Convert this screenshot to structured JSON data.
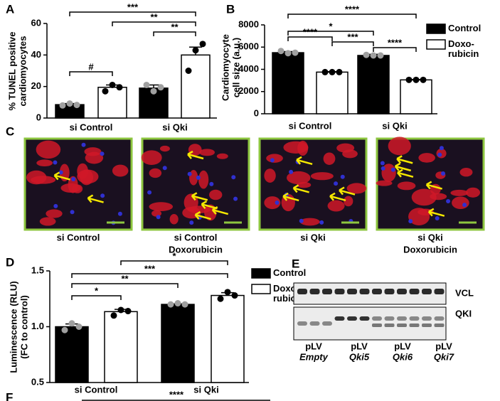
{
  "chart_data": [
    {
      "type": "bar",
      "panel": "A",
      "ylabel": [
        "% TUNEL positive",
        "cardiomyocytes"
      ],
      "categories": [
        "si Control",
        "si Qki"
      ],
      "ylim": [
        0,
        60
      ],
      "yticks": [
        0,
        20,
        40,
        60
      ],
      "series": [
        {
          "name": "Control",
          "color": "#000000",
          "point_color": "#a0a0a0",
          "values": [
            8.5,
            19
          ],
          "errors": [
            0.7,
            2
          ],
          "points": [
            [
              8,
              9.2,
              8.3
            ],
            [
              21,
              17,
              19.5
            ]
          ]
        },
        {
          "name": "Doxo-\nrubicin",
          "color": "#ffffff",
          "point_color": "#000000",
          "values": [
            19.5,
            40
          ],
          "errors": [
            1.5,
            5
          ],
          "points": [
            [
              17,
              21,
              19.5
            ],
            [
              30,
              43,
              47
            ]
          ]
        }
      ],
      "annotations": [
        "***",
        "**",
        "**",
        "#"
      ]
    },
    {
      "type": "bar",
      "panel": "B",
      "ylabel": [
        "Cardiomyocyte",
        "cell size (a.u.)"
      ],
      "categories": [
        "si Control",
        "si Qki"
      ],
      "ylim": [
        0,
        8000
      ],
      "yticks": [
        0,
        2000,
        4000,
        6000,
        8000
      ],
      "legend": "right",
      "series": [
        {
          "name": "Control",
          "color": "#000000",
          "point_color": "#a0a0a0",
          "values": [
            5500,
            5250
          ],
          "errors": [
            100,
            100
          ],
          "points": [
            [
              5650,
              5450,
              5500
            ],
            [
              5300,
              5250,
              5250
            ]
          ]
        },
        {
          "name": "Doxo-\nrubicin",
          "color": "#ffffff",
          "point_color": "#000000",
          "values": [
            3750,
            3050
          ],
          "errors": [
            40,
            40
          ],
          "points": [
            [
              3750,
              3750,
              3750
            ],
            [
              3050,
              3050,
              3050
            ]
          ]
        }
      ],
      "annotations": [
        "****",
        "*",
        "****",
        "***",
        "****"
      ]
    },
    {
      "type": "bar",
      "panel": "D",
      "ylabel": [
        "Luminescence (RLU)",
        "(FC to control)"
      ],
      "categories": [
        "si Control",
        "si Qki"
      ],
      "ylim": [
        0.5,
        1.5
      ],
      "yticks": [
        0.5,
        {
          "value": 1,
          "label": "1.0"
        },
        1.5
      ],
      "legend": "right",
      "series": [
        {
          "name": "Control",
          "color": "#000000",
          "point_color": "#a0a0a0",
          "values": [
            1.0,
            1.2
          ],
          "errors": [
            0.025,
            0.005
          ],
          "points": [
            [
              0.97,
              1.03,
              1.0
            ],
            [
              1.2,
              1.21,
              1.2
            ]
          ]
        },
        {
          "name": "Doxo-\nrubicin",
          "color": "#ffffff",
          "point_color": "#000000",
          "values": [
            1.135,
            1.28
          ],
          "errors": [
            0.02,
            0.025
          ],
          "points": [
            [
              1.1,
              1.15,
              1.14
            ],
            [
              1.25,
              1.31,
              1.28
            ]
          ]
        }
      ],
      "annotations": [
        "*",
        "***",
        "**",
        "*"
      ]
    }
  ],
  "panel_c": {
    "letter": "C",
    "images": [
      {
        "label": [
          "si Control"
        ]
      },
      {
        "label": [
          "si Control",
          "Doxorubicin"
        ]
      },
      {
        "label": [
          "si Qki"
        ]
      },
      {
        "label": [
          "si Qki",
          "Doxorubicin"
        ]
      }
    ]
  },
  "panel_e": {
    "letter": "E",
    "bands": [
      "VCL",
      "QKI"
    ],
    "lanes": [
      [
        "pLV",
        "Empty"
      ],
      [
        "pLV",
        "Qki5"
      ],
      [
        "pLV",
        "Qki6"
      ],
      [
        "pLV",
        "Qki7"
      ]
    ]
  },
  "panel_f": {
    "letter": "F",
    "annotation": "****"
  }
}
